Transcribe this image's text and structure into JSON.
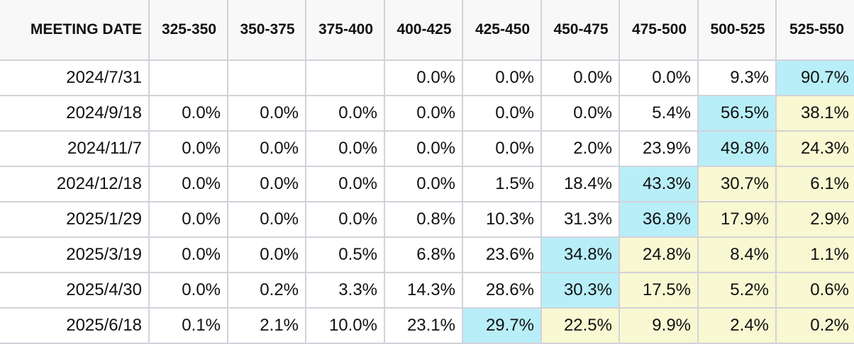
{
  "table": {
    "header_label": "MEETING DATE",
    "columns": [
      "325-350",
      "350-375",
      "375-400",
      "400-425",
      "425-450",
      "450-475",
      "475-500",
      "500-525",
      "525-550"
    ],
    "colors": {
      "header_bg": "#f8f8f8",
      "grid_line": "#d2d2da",
      "highlight_max": "#b8eef8",
      "highlight_above_max": "#f8f8d2"
    },
    "rows": [
      {
        "date": "2024/7/31",
        "values": [
          "",
          "",
          "",
          "0.0%",
          "0.0%",
          "0.0%",
          "0.0%",
          "9.3%",
          "90.7%"
        ],
        "highlights": [
          "",
          "",
          "",
          "",
          "",
          "",
          "",
          "",
          "blue"
        ]
      },
      {
        "date": "2024/9/18",
        "values": [
          "0.0%",
          "0.0%",
          "0.0%",
          "0.0%",
          "0.0%",
          "0.0%",
          "5.4%",
          "56.5%",
          "38.1%"
        ],
        "highlights": [
          "",
          "",
          "",
          "",
          "",
          "",
          "",
          "blue",
          "yellow"
        ]
      },
      {
        "date": "2024/11/7",
        "values": [
          "0.0%",
          "0.0%",
          "0.0%",
          "0.0%",
          "0.0%",
          "2.0%",
          "23.9%",
          "49.8%",
          "24.3%"
        ],
        "highlights": [
          "",
          "",
          "",
          "",
          "",
          "",
          "",
          "blue",
          "yellow"
        ]
      },
      {
        "date": "2024/12/18",
        "values": [
          "0.0%",
          "0.0%",
          "0.0%",
          "0.0%",
          "1.5%",
          "18.4%",
          "43.3%",
          "30.7%",
          "6.1%"
        ],
        "highlights": [
          "",
          "",
          "",
          "",
          "",
          "",
          "blue",
          "yellow",
          "yellow"
        ]
      },
      {
        "date": "2025/1/29",
        "values": [
          "0.0%",
          "0.0%",
          "0.0%",
          "0.8%",
          "10.3%",
          "31.3%",
          "36.8%",
          "17.9%",
          "2.9%"
        ],
        "highlights": [
          "",
          "",
          "",
          "",
          "",
          "",
          "blue",
          "yellow",
          "yellow"
        ]
      },
      {
        "date": "2025/3/19",
        "values": [
          "0.0%",
          "0.0%",
          "0.5%",
          "6.8%",
          "23.6%",
          "34.8%",
          "24.8%",
          "8.4%",
          "1.1%"
        ],
        "highlights": [
          "",
          "",
          "",
          "",
          "",
          "blue",
          "yellow",
          "yellow",
          "yellow"
        ]
      },
      {
        "date": "2025/4/30",
        "values": [
          "0.0%",
          "0.2%",
          "3.3%",
          "14.3%",
          "28.6%",
          "30.3%",
          "17.5%",
          "5.2%",
          "0.6%"
        ],
        "highlights": [
          "",
          "",
          "",
          "",
          "",
          "blue",
          "yellow",
          "yellow",
          "yellow"
        ]
      },
      {
        "date": "2025/6/18",
        "values": [
          "0.1%",
          "2.1%",
          "10.0%",
          "23.1%",
          "29.7%",
          "22.5%",
          "9.9%",
          "2.4%",
          "0.2%"
        ],
        "highlights": [
          "",
          "",
          "",
          "",
          "blue",
          "yellow",
          "yellow",
          "yellow",
          "yellow"
        ]
      }
    ]
  }
}
